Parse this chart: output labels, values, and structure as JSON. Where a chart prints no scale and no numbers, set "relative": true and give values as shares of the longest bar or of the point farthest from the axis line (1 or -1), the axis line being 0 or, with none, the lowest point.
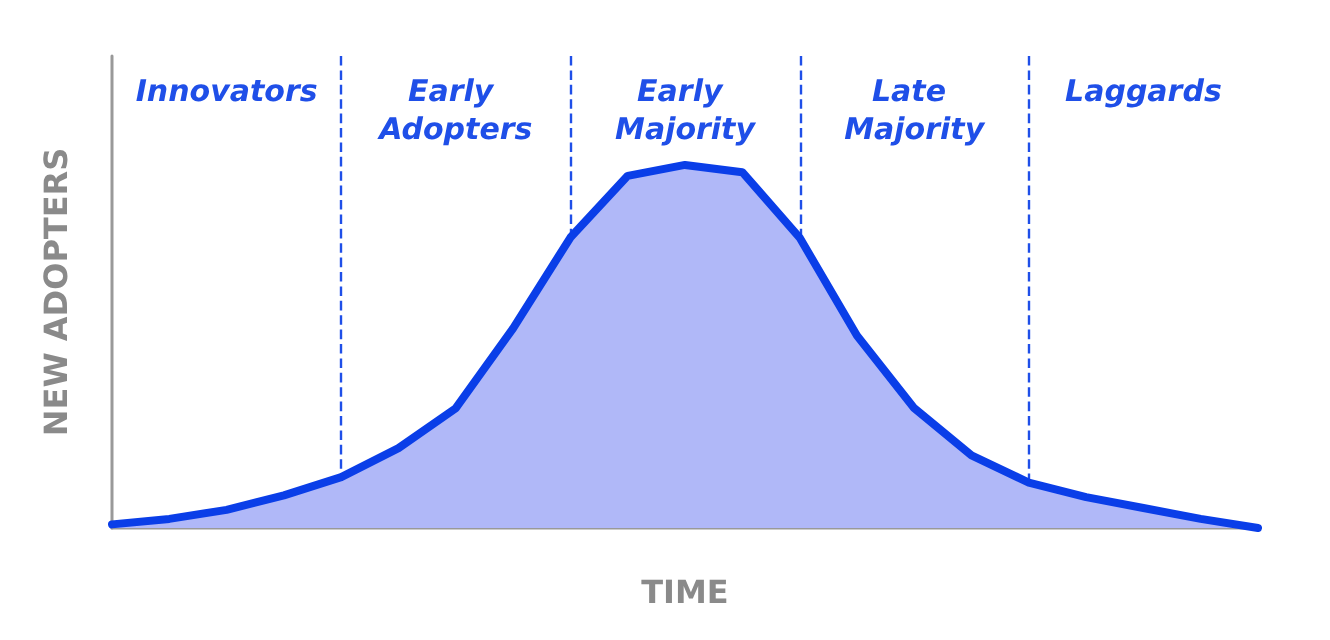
{
  "chart_data": {
    "type": "area",
    "relative": true,
    "xlabel": "TIME",
    "ylabel": "NEW ADOPTERS",
    "categories": [
      null,
      null,
      null,
      null,
      null,
      null,
      null,
      null,
      null,
      null,
      null,
      null,
      null,
      null,
      null,
      null,
      null,
      null,
      null,
      null,
      null
    ],
    "grid": "x",
    "series": [
      {
        "color": "#0a3ee8",
        "values": [
          0.01,
          0.025,
          0.05,
          0.09,
          0.14,
          0.22,
          0.33,
          0.55,
          0.8,
          0.97,
          1,
          0.98,
          0.8,
          0.53,
          0.33,
          0.2,
          0.125,
          0.085,
          0.055,
          0.025,
          0
        ]
      }
    ],
    "annotations": [
      "Innovators",
      "Early Adopters",
      "Early Majority",
      "Late Majority",
      "Laggards"
    ]
  }
}
